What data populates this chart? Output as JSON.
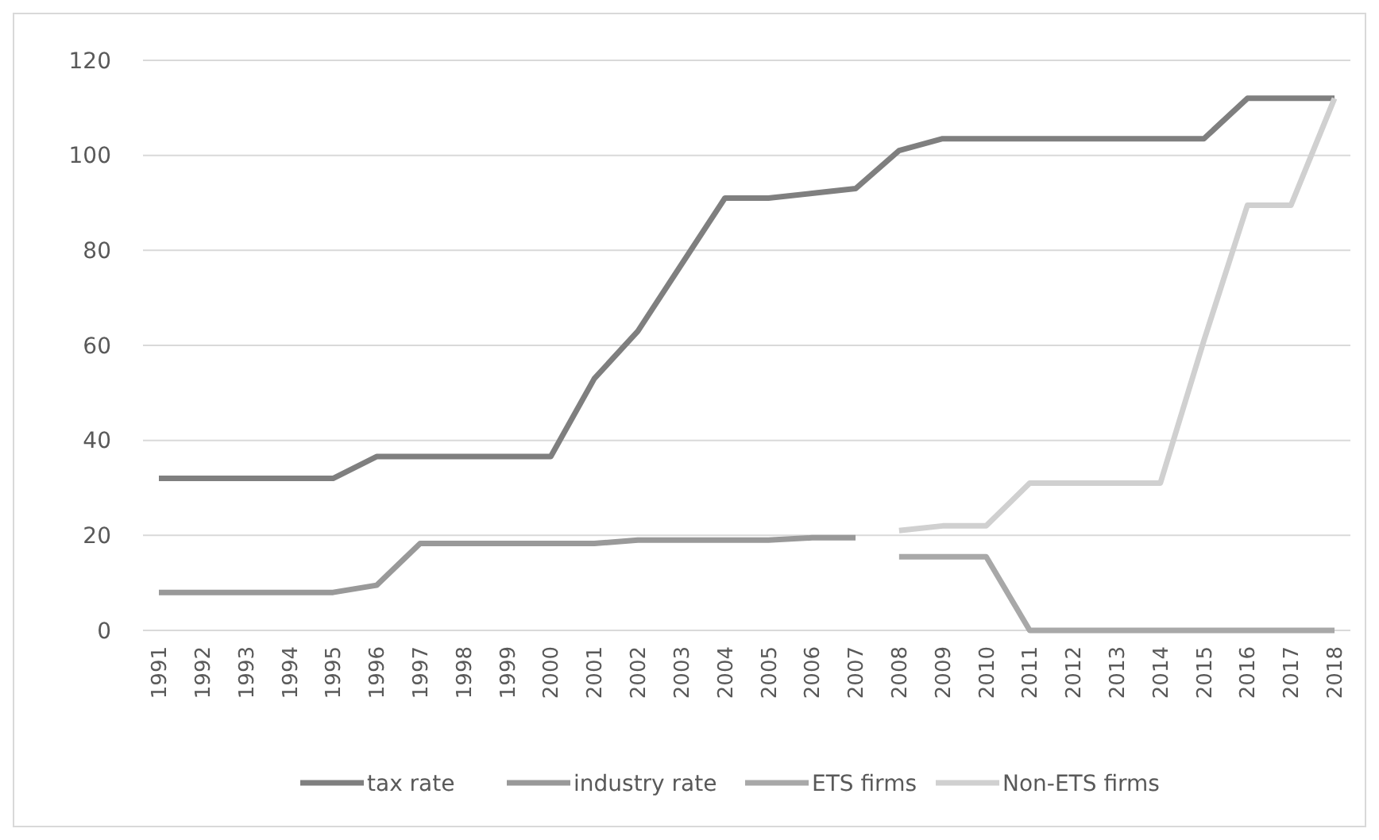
{
  "chart_data": {
    "type": "line",
    "categories": [
      "1991",
      "1992",
      "1993",
      "1994",
      "1995",
      "1996",
      "1997",
      "1998",
      "1999",
      "2000",
      "2001",
      "2002",
      "2003",
      "2004",
      "2005",
      "2006",
      "2007",
      "2008",
      "2009",
      "2010",
      "2011",
      "2012",
      "2013",
      "2014",
      "2015",
      "2016",
      "2017",
      "2018"
    ],
    "series": [
      {
        "name": "tax rate",
        "color": "#7f7f7f",
        "values": [
          32,
          32,
          32,
          32,
          32,
          36.6,
          36.6,
          36.6,
          36.6,
          36.6,
          53,
          63,
          77,
          91,
          91,
          92,
          93,
          101,
          103.5,
          103.5,
          103.5,
          103.5,
          103.5,
          103.5,
          103.5,
          112,
          112,
          112
        ]
      },
      {
        "name": "industry rate",
        "color": "#999999",
        "values": [
          8,
          8,
          8,
          8,
          8,
          9.5,
          18.3,
          18.3,
          18.3,
          18.3,
          18.3,
          19,
          19,
          19,
          19,
          19.5,
          19.5,
          null,
          null,
          null,
          null,
          null,
          null,
          null,
          null,
          null,
          null,
          null
        ]
      },
      {
        "name": "ETS firms",
        "color": "#a8a8a8",
        "values": [
          null,
          null,
          null,
          null,
          null,
          null,
          null,
          null,
          null,
          null,
          null,
          null,
          null,
          null,
          null,
          null,
          null,
          15.5,
          15.5,
          15.5,
          0,
          0,
          0,
          0,
          0,
          0,
          0,
          0
        ]
      },
      {
        "name": "Non-ETS firms",
        "color": "#d0d0d0",
        "values": [
          null,
          null,
          null,
          null,
          null,
          null,
          null,
          null,
          null,
          null,
          null,
          null,
          null,
          null,
          null,
          null,
          null,
          21,
          22,
          22,
          31,
          31,
          31,
          31,
          61,
          89.5,
          89.5,
          112
        ]
      }
    ],
    "ylim": [
      0,
      120
    ],
    "yticks": [
      0,
      20,
      40,
      60,
      80,
      100,
      120
    ],
    "grid": "y",
    "legend": "bottom",
    "marker": "none",
    "line_style": "solid"
  }
}
